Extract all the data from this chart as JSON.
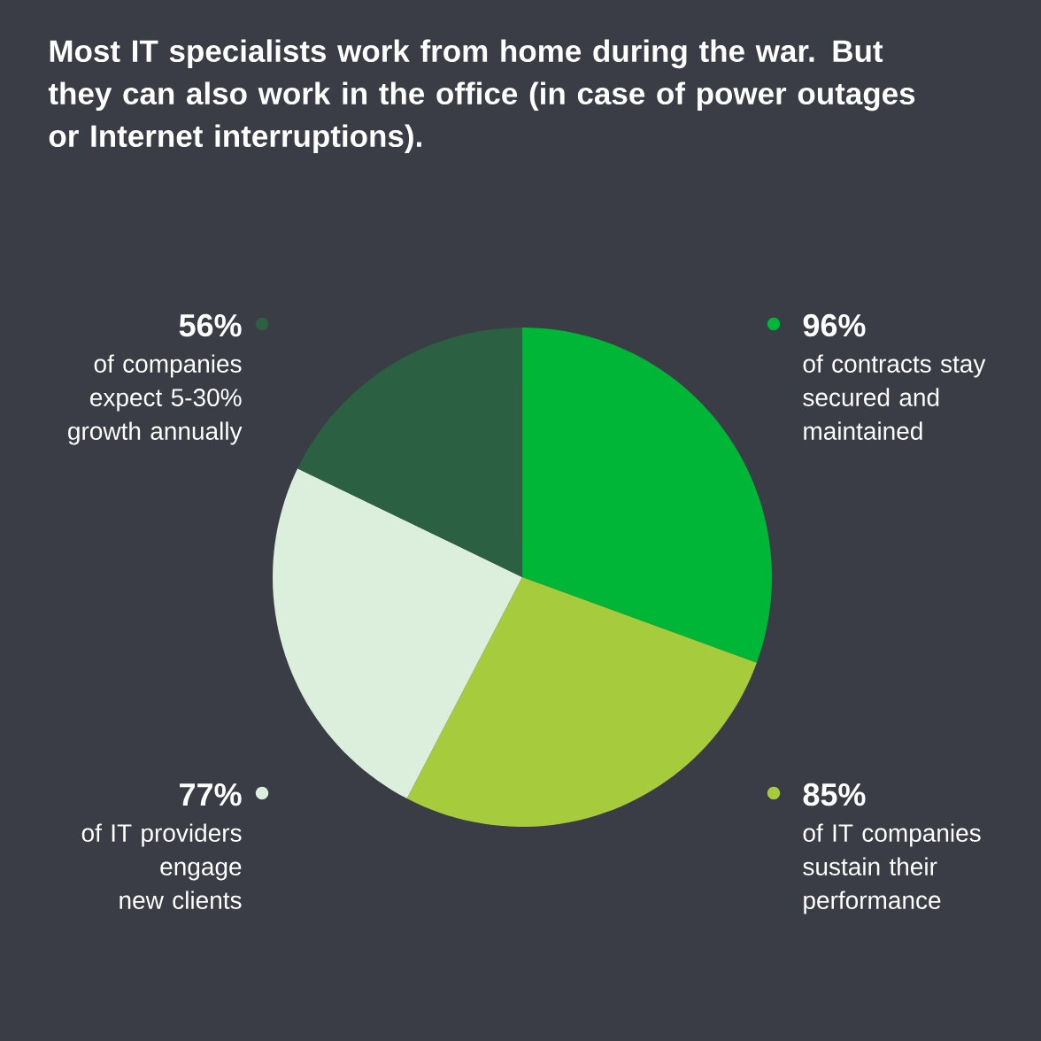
{
  "chart_data": {
    "type": "pie",
    "title": "Most IT specialists work from home during the war. But they can also work in the office (in case of power outages or Internet interruptions).",
    "categories": [
      "of contracts stay secured and maintained",
      "of IT companies sustain their performance",
      "of IT providers engage new clients",
      "of companies expect 5-30% growth annually"
    ],
    "values": [
      96,
      85,
      77,
      56
    ],
    "value_labels": [
      "96%",
      "85%",
      "77%",
      "56%"
    ],
    "colors": [
      "#00b636",
      "#a6cb3c",
      "#dcefdc",
      "#2b6043"
    ],
    "legend": "left"
  }
}
